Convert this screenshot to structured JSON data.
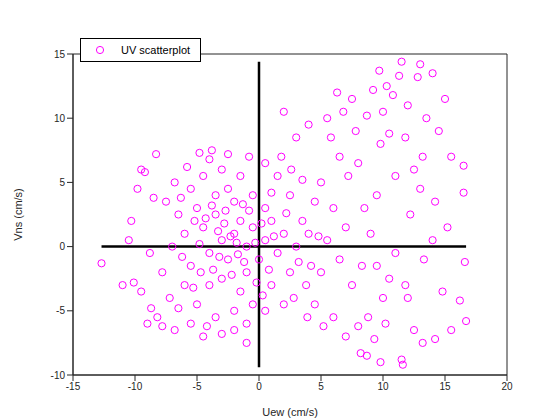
{
  "chart_data": {
    "type": "scatter",
    "x_label": "Uew (cm/s)",
    "y_label": "Vns (cm/s)",
    "xlim": [
      -15,
      20
    ],
    "xticks": [
      -15,
      -10,
      -5,
      0,
      5,
      10,
      15,
      20
    ],
    "ylim": [
      -10,
      15
    ],
    "yticks": [
      -10,
      -5,
      0,
      5,
      10,
      15
    ],
    "grid": false,
    "legend": "upper left",
    "series": [
      {
        "name": "UV scatterplot",
        "color": "#ff00ff",
        "marker": "circle",
        "x": [
          -2,
          -1.5,
          -3,
          -2.5,
          -1,
          -0.5,
          -3.5,
          -4,
          -2,
          -1,
          0.5,
          1,
          -4.5,
          -5,
          -3,
          -1.5,
          0,
          1.5,
          2,
          -2.5,
          -3.5,
          -0.5,
          0.5,
          -4,
          -5.5,
          -6,
          -5.5,
          -4.5,
          -3,
          -1.5,
          -0.5,
          -2,
          -3.5,
          -5,
          -6,
          -6.5,
          -6.8,
          -7,
          -4,
          -2.5,
          1,
          2.5,
          3,
          3.5,
          2.5,
          1.5,
          0.5,
          -1,
          -4.2,
          -6.5,
          -1.8,
          -2.8,
          -3.2,
          -0.8,
          -1.2,
          -2.2,
          -4.8,
          0.2,
          -3.8,
          -0.2,
          1.2,
          2.2,
          3.2,
          4,
          4.5,
          3.8,
          2,
          -5.2,
          -6.2,
          -7.5,
          -7.8,
          -7.2,
          -5.8,
          -4.8,
          -3.8,
          0.5,
          1.8,
          -0.8,
          -2,
          -3,
          -12.7,
          -10.3,
          -9.5,
          -9.2,
          -8.3,
          -9.5,
          -10.1,
          -8.7,
          -9,
          -8.2,
          -8.5,
          -8.8,
          -11,
          -10.5,
          -9.8,
          -7.8,
          -6.8,
          -5.5,
          -4.5,
          -1,
          4.5,
          5,
          5.5,
          5,
          6,
          6.5,
          7,
          7.5,
          6,
          5.2,
          5.8,
          6.5,
          7.2,
          7.8,
          6.8,
          5.5,
          4,
          3,
          2,
          6.3,
          7.5,
          8,
          8.5,
          8.3,
          8.8,
          8,
          7,
          8.2,
          8.7,
          9.3,
          9,
          9.5,
          9.8,
          10,
          9.7,
          10.3,
          10.5,
          10.2,
          9.8,
          11,
          11.5,
          11.3,
          12,
          11.8,
          12.2,
          11.6,
          11.5,
          12,
          12.5,
          11,
          13,
          13.5,
          13.2,
          13,
          13.3,
          13.2,
          14.2,
          14,
          14.5,
          14.2,
          15,
          15.5,
          14.8,
          15.5,
          16.5,
          16.5,
          16.6,
          16.2,
          16.7,
          15.2,
          -2.3,
          -1.7,
          -3.3,
          -0.3,
          -4.3,
          -2.7,
          -1.3,
          0.8,
          -3.7,
          -4.7,
          2.8,
          3.5,
          4.2,
          1,
          -5.3,
          -6.3,
          0.3,
          2.6,
          4.8,
          3.9,
          12.8,
          10.8,
          9.2,
          8.7,
          10.5,
          12.5,
          14,
          10,
          11.8,
          9.5
        ],
        "values": [
          1,
          2,
          0.5,
          -1,
          0,
          1.5,
          2.5,
          -0.5,
          3.5,
          -2,
          0.5,
          2,
          1.5,
          3,
          -2.5,
          -3.5,
          -1,
          -0.5,
          1,
          4.5,
          4,
          4,
          3,
          -3,
          -1.5,
          1,
          4.5,
          5.5,
          6,
          5.5,
          -4.5,
          -5,
          -5.5,
          -4.5,
          -3,
          2.5,
          5,
          0,
          6.8,
          7.2,
          -3,
          -2,
          0,
          2,
          4,
          5.5,
          -5,
          -6,
          -6.2,
          -4.8,
          0.3,
          1.8,
          -0.8,
          2.8,
          -1.2,
          -2.2,
          0.2,
          1.8,
          3.2,
          -2.8,
          0.8,
          2.6,
          -1.2,
          1,
          3.5,
          -3,
          -4.5,
          2,
          -0.8,
          3.5,
          -2,
          -4,
          6.2,
          7.3,
          7.5,
          6.5,
          7,
          7,
          -6.5,
          -6.8,
          -1.3,
          2,
          6,
          5.8,
          7.2,
          -3.5,
          -2.8,
          -4.8,
          -6,
          -5.5,
          3.8,
          -0.5,
          -3,
          0.5,
          4.5,
          -6.2,
          -6.5,
          -6,
          -7,
          -7.5,
          -4.5,
          -2,
          0.5,
          5,
          3,
          -1,
          1.5,
          -3,
          -5.5,
          -6.2,
          8.5,
          7,
          5.5,
          9,
          10.5,
          10,
          9.5,
          8.5,
          10.5,
          12,
          11.5,
          6.5,
          3,
          -1.5,
          -5.5,
          -6.2,
          -7,
          -8.3,
          -8.5,
          -7.2,
          1,
          4,
          8,
          10.5,
          13.7,
          12.5,
          -2.5,
          -6,
          -9,
          5.5,
          14.4,
          13.3,
          11,
          8.5,
          2.5,
          -9.2,
          -8.8,
          -4,
          -6.5,
          -0.5,
          14.2,
          10,
          7,
          4.5,
          -1,
          -7.5,
          -7.2,
          13.5,
          9,
          3.5,
          11.5,
          7,
          -3.5,
          -6.5,
          6.3,
          4.2,
          -1.2,
          -4.2,
          -5.8,
          1.5,
          0.8,
          -0.6,
          1.2,
          0.3,
          2.2,
          2.8,
          3.3,
          -1.8,
          -1.8,
          -2,
          -4,
          5.2,
          -1.5,
          4.2,
          -3.2,
          3.8,
          -3.8,
          6,
          0.8,
          -5.5,
          13.2,
          11.8,
          12.2,
          10.2,
          8.8,
          6,
          0.5,
          -4,
          -3,
          -1.5
        ]
      }
    ],
    "reference_lines": [
      {
        "x": [
          -12.7,
          16.7
        ],
        "y": [
          0,
          0
        ],
        "color": "#000000"
      },
      {
        "x": [
          0,
          0
        ],
        "y": [
          -9.4,
          14.4
        ],
        "color": "#000000"
      }
    ]
  }
}
